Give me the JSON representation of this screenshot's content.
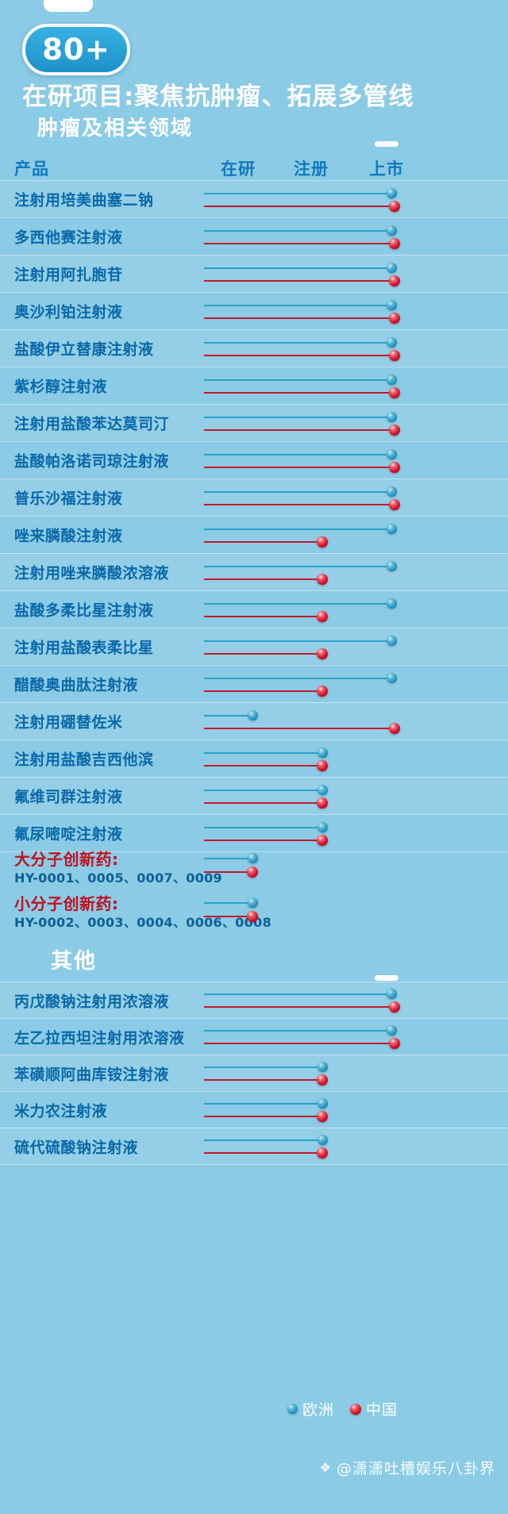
{
  "badge": {
    "label": "80+"
  },
  "title": "在研项目:聚焦抗肿瘤、拓展多管线",
  "table_header": {
    "product": "产品",
    "stages": [
      "在研",
      "注册",
      "上市"
    ]
  },
  "legend": {
    "items": [
      {
        "label": "欧洲",
        "series": "europe",
        "color": "#1F8CB6"
      },
      {
        "label": "中国",
        "series": "china",
        "color": "#D5112A"
      }
    ]
  },
  "watermark": {
    "icon": "❖",
    "text": "@潇潇吐槽娱乐八卦界"
  },
  "colors": {
    "background": "#8BCBE5",
    "title_text": "#FFFFFF",
    "column_header_text": "#1179BD",
    "product_text": "#0A68A9",
    "europe_line": "#2BA1CA",
    "europe_dot": "#1F8CB6",
    "china_line": "#C3162F",
    "china_dot": "#D5112A",
    "innovation_label": "#C20E1F",
    "innovation_codes": "#0D5F96"
  },
  "chart_data": {
    "type": "table",
    "title": "在研项目:聚焦抗肿瘤、拓展多管线",
    "stages": [
      "在研",
      "注册",
      "上市"
    ],
    "series": [
      "欧洲",
      "中国"
    ],
    "legend_position": "bottom-right",
    "sections": [
      {
        "heading": "肿瘤及相关领域",
        "rows": [
          {
            "product": "注射用培美曲塞二钠",
            "europe": "上市",
            "china": "上市"
          },
          {
            "product": "多西他赛注射液",
            "europe": "上市",
            "china": "上市"
          },
          {
            "product": "注射用阿扎胞苷",
            "europe": "上市",
            "china": "上市"
          },
          {
            "product": "奥沙利铂注射液",
            "europe": "上市",
            "china": "上市"
          },
          {
            "product": "盐酸伊立替康注射液",
            "europe": "上市",
            "china": "上市"
          },
          {
            "product": "紫杉醇注射液",
            "europe": "上市",
            "china": "上市"
          },
          {
            "product": "注射用盐酸苯达莫司汀",
            "europe": "上市",
            "china": "上市"
          },
          {
            "product": "盐酸帕洛诺司琼注射液",
            "europe": "上市",
            "china": "上市"
          },
          {
            "product": "普乐沙福注射液",
            "europe": "上市",
            "china": "上市"
          },
          {
            "product": "唑来膦酸注射液",
            "europe": "上市",
            "china": "注册"
          },
          {
            "product": "注射用唑来膦酸浓溶液",
            "europe": "上市",
            "china": "注册"
          },
          {
            "product": "盐酸多柔比星注射液",
            "europe": "上市",
            "china": "注册"
          },
          {
            "product": "注射用盐酸表柔比星",
            "europe": "上市",
            "china": "注册"
          },
          {
            "product": "醋酸奥曲肽注射液",
            "europe": "上市",
            "china": "注册"
          },
          {
            "product": "注射用硼替佐米",
            "europe": "在研",
            "china": "上市"
          },
          {
            "product": "注射用盐酸吉西他滨",
            "europe": "注册",
            "china": "注册"
          },
          {
            "product": "氟维司群注射液",
            "europe": "注册",
            "china": "注册"
          },
          {
            "product": "氟尿嘧啶注射液",
            "europe": "注册",
            "china": "注册"
          }
        ],
        "special_rows": [
          {
            "label": "大分子创新药:",
            "codes": "HY-0001、0005、0007、0009",
            "europe": "在研",
            "china": "在研"
          },
          {
            "label": "小分子创新药:",
            "codes": "HY-0002、0003、0004、0006、0008",
            "europe": "在研",
            "china": "在研"
          }
        ]
      },
      {
        "heading": "其他",
        "rows": [
          {
            "product": "丙戊酸钠注射用浓溶液",
            "europe": "上市",
            "china": "上市"
          },
          {
            "product": "左乙拉西坦注射用浓溶液",
            "europe": "上市",
            "china": "上市"
          },
          {
            "product": "苯磺顺阿曲库铵注射液",
            "europe": "注册",
            "china": "注册"
          },
          {
            "product": "米力农注射液",
            "europe": "注册",
            "china": "注册"
          },
          {
            "product": "硫代硫酸钠注射液",
            "europe": "注册",
            "china": "注册"
          }
        ]
      }
    ]
  }
}
